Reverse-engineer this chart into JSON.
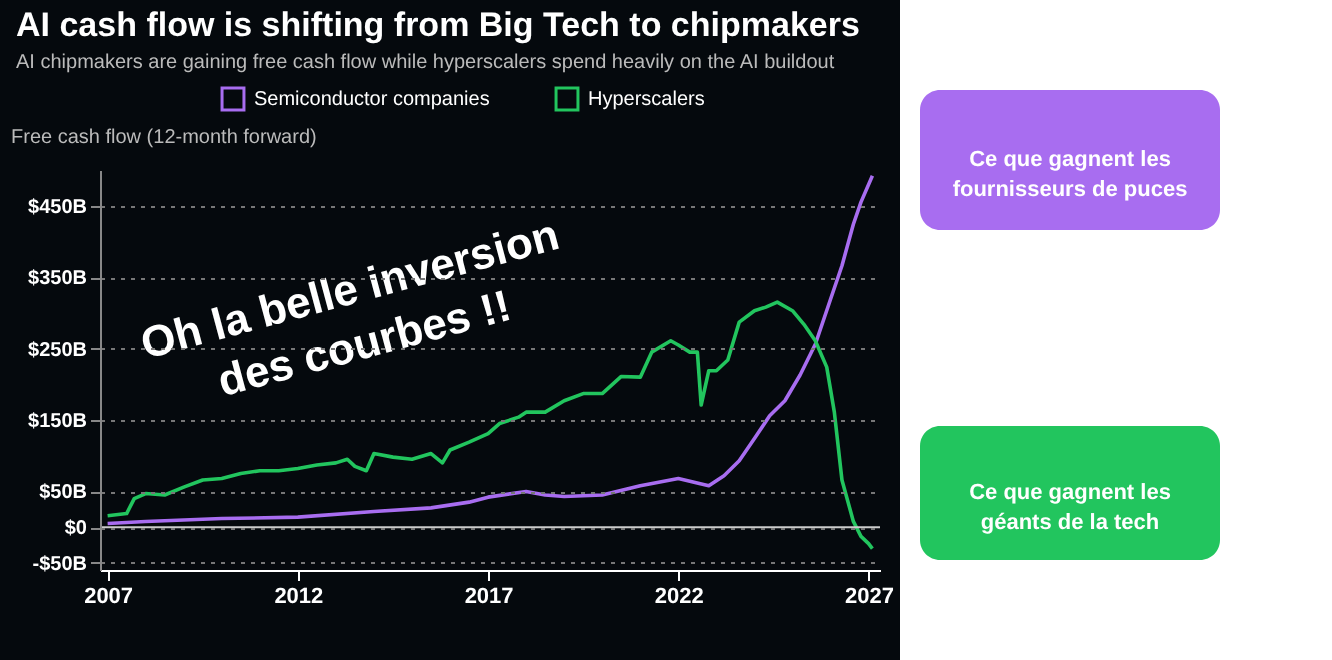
{
  "chart_data": {
    "type": "line",
    "title": "AI cash flow is shifting from Big Tech to chipmakers",
    "subtitle": "AI chipmakers are gaining free cash flow while hyperscalers spend heavily on the AI buildout",
    "ylabel": "Free cash flow (12-month forward)",
    "series": [
      {
        "name": "Semiconductor companies",
        "color": "#a86df0",
        "x": [
          2007,
          2008,
          2010,
          2012,
          2014,
          2015.5,
          2016.5,
          2017,
          2018,
          2018.5,
          2019,
          2020,
          2021,
          2022,
          2022.8,
          2023.2,
          2023.6,
          2024,
          2024.4,
          2024.8,
          2025.2,
          2025.6,
          2026,
          2026.3,
          2026.6,
          2026.8,
          2027.1
        ],
        "values": [
          5,
          8,
          12,
          14,
          22,
          27,
          35,
          42,
          50,
          45,
          43,
          45,
          58,
          68,
          58,
          72,
          93,
          124,
          156,
          177,
          213,
          256,
          319,
          366,
          424,
          455,
          492
        ]
      },
      {
        "name": "Hyperscalers",
        "color": "#22c55e",
        "x": [
          2007,
          2007.5,
          2007.7,
          2008,
          2008.5,
          2009,
          2009.5,
          2010,
          2010.5,
          2011,
          2011.5,
          2012,
          2012.5,
          2013,
          2013.3,
          2013.5,
          2013.8,
          2014,
          2014.5,
          2015,
          2015.5,
          2015.8,
          2016,
          2016.5,
          2017,
          2017.3,
          2017.8,
          2018,
          2018.5,
          2019,
          2019.5,
          2020,
          2020.5,
          2021,
          2021.3,
          2021.8,
          2022,
          2022.3,
          2022.5,
          2022.6,
          2022.8,
          2023,
          2023.3,
          2023.6,
          2024,
          2024.3,
          2024.6,
          2025,
          2025.3,
          2025.6,
          2025.9,
          2026.1,
          2026.3,
          2026.6,
          2026.8,
          2027,
          2027.1
        ],
        "values": [
          16,
          19,
          40,
          47,
          45,
          56,
          66,
          68,
          75,
          79,
          79,
          82,
          87,
          90,
          95,
          85,
          79,
          103,
          98,
          95,
          103,
          90,
          108,
          119,
          131,
          145,
          154,
          161,
          161,
          177,
          187,
          187,
          211,
          210,
          245,
          261,
          255,
          245,
          245,
          171,
          219,
          219,
          234,
          287,
          303,
          308,
          315,
          303,
          284,
          261,
          224,
          161,
          66,
          8,
          -13,
          -23,
          -30
        ]
      }
    ],
    "xlim": [
      2006.8,
      2027.3
    ],
    "xticks": [
      2007,
      2012,
      2017,
      2022,
      2027
    ],
    "ylim": [
      -60,
      500
    ],
    "yticks": [
      {
        "value": -50,
        "label": "-$50B"
      },
      {
        "value": 0,
        "label": "$0"
      },
      {
        "value": 50,
        "label": "$50B"
      },
      {
        "value": 150,
        "label": "$150B"
      },
      {
        "value": 250,
        "label": "$250B"
      },
      {
        "value": 350,
        "label": "$350B"
      },
      {
        "value": 450,
        "label": "$450B"
      }
    ],
    "ref_lines": [
      {
        "axis": "y",
        "value": 0,
        "color": "#cccccc"
      }
    ],
    "grid": "y",
    "legend": "top",
    "annotations": [
      "Oh la belle inversion des courbes !!",
      "Ce que gagnent les fournisseurs de puces",
      "Ce que gagnent les géants de la tech"
    ]
  }
}
